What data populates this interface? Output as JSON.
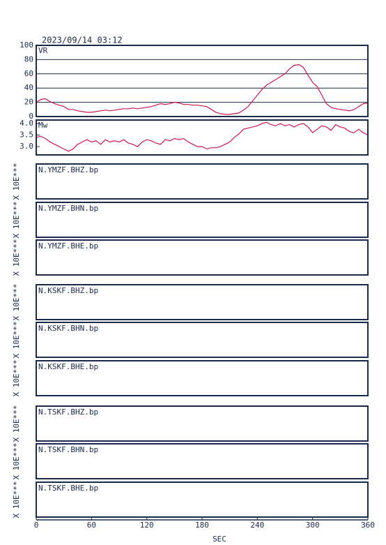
{
  "date": "2023/09/14  03:12",
  "chart_data": [
    {
      "type": "line",
      "label": "VR",
      "color": "#d0154a",
      "xlim": [
        0,
        360
      ],
      "ylim": [
        0,
        100
      ],
      "yticks": [
        0,
        20,
        40,
        60,
        80,
        100
      ],
      "grid": true,
      "x": [
        0,
        5,
        10,
        15,
        20,
        25,
        30,
        35,
        40,
        45,
        50,
        55,
        60,
        65,
        70,
        75,
        80,
        85,
        90,
        95,
        100,
        105,
        110,
        115,
        120,
        125,
        130,
        135,
        140,
        145,
        150,
        155,
        160,
        165,
        170,
        175,
        180,
        185,
        190,
        195,
        200,
        205,
        210,
        215,
        220,
        225,
        230,
        235,
        240,
        245,
        250,
        255,
        260,
        265,
        270,
        275,
        280,
        285,
        290,
        295,
        300,
        305,
        310,
        315,
        320,
        325,
        330,
        335,
        340,
        345,
        350,
        355,
        360
      ],
      "values": [
        20,
        24,
        25,
        21,
        18,
        16,
        14,
        10,
        10,
        8,
        7,
        6,
        6,
        7,
        8,
        9,
        8,
        9,
        10,
        11,
        11,
        12,
        11,
        12,
        13,
        14,
        16,
        18,
        17,
        18,
        20,
        19,
        17,
        17,
        16,
        16,
        15,
        14,
        10,
        6,
        4,
        3,
        3,
        4,
        5,
        9,
        14,
        22,
        30,
        38,
        44,
        48,
        52,
        56,
        60,
        67,
        72,
        73,
        69,
        58,
        48,
        42,
        30,
        18,
        13,
        11,
        10,
        9,
        8,
        10,
        14,
        18,
        19
      ]
    },
    {
      "type": "line",
      "label": "Mw",
      "color": "#d0154a",
      "xlim": [
        0,
        360
      ],
      "ylim": [
        2.64,
        4.15
      ],
      "yticks": [
        {
          "value": 3,
          "label": "3.0"
        },
        3.5,
        {
          "value": 4,
          "label": "4.0"
        }
      ],
      "grid": false,
      "x": [
        0,
        5,
        10,
        15,
        20,
        25,
        30,
        35,
        40,
        45,
        50,
        55,
        60,
        65,
        70,
        75,
        80,
        85,
        90,
        95,
        100,
        105,
        110,
        115,
        120,
        125,
        130,
        135,
        140,
        145,
        150,
        155,
        160,
        165,
        170,
        175,
        180,
        185,
        190,
        195,
        200,
        205,
        210,
        215,
        220,
        225,
        230,
        235,
        240,
        245,
        250,
        255,
        260,
        265,
        270,
        275,
        280,
        285,
        290,
        295,
        300,
        305,
        310,
        315,
        320,
        325,
        330,
        335,
        340,
        345,
        350,
        355,
        360
      ],
      "values": [
        3.4,
        3.45,
        3.35,
        3.2,
        3.1,
        3.0,
        2.9,
        2.8,
        2.9,
        3.1,
        3.2,
        3.3,
        3.2,
        3.25,
        3.1,
        3.3,
        3.2,
        3.25,
        3.2,
        3.3,
        3.15,
        3.1,
        3.0,
        3.2,
        3.3,
        3.25,
        3.15,
        3.1,
        3.3,
        3.25,
        3.35,
        3.3,
        3.35,
        3.2,
        3.1,
        3.0,
        3.0,
        2.9,
        2.95,
        2.95,
        3.0,
        3.1,
        3.2,
        3.4,
        3.55,
        3.75,
        3.8,
        3.85,
        3.9,
        4.0,
        4.05,
        3.95,
        3.9,
        4.0,
        3.9,
        3.95,
        3.85,
        3.95,
        4.0,
        3.85,
        3.6,
        3.75,
        3.9,
        3.85,
        3.7,
        3.95,
        3.85,
        3.8,
        3.65,
        3.6,
        3.75,
        3.6,
        3.5
      ]
    }
  ],
  "traces": [
    {
      "label": "N.YMZF.BHZ.bp",
      "scale": "X 10E***"
    },
    {
      "label": "N.YMZF.BHN.bp",
      "scale": "X 10E***"
    },
    {
      "label": "N.YMZF.BHE.bp",
      "scale": "X 10E***"
    },
    {
      "label": "N.KSKF.BHZ.bp",
      "scale": "X 10E***"
    },
    {
      "label": "N.KSKF.BHN.bp",
      "scale": "X 10E***"
    },
    {
      "label": "N.KSKF.BHE.bp",
      "scale": "X 10E***"
    },
    {
      "label": "N.TSKF.BHZ.bp",
      "scale": "X 10E***"
    },
    {
      "label": "N.TSKF.BHN.bp",
      "scale": "X 10E***"
    },
    {
      "label": "N.TSKF.BHE.bp",
      "scale": "X 10E***"
    }
  ],
  "time_axis": {
    "label": "SEC",
    "xlim": [
      0,
      360
    ],
    "xticks": [
      0,
      60,
      120,
      180,
      240,
      300,
      360
    ]
  }
}
